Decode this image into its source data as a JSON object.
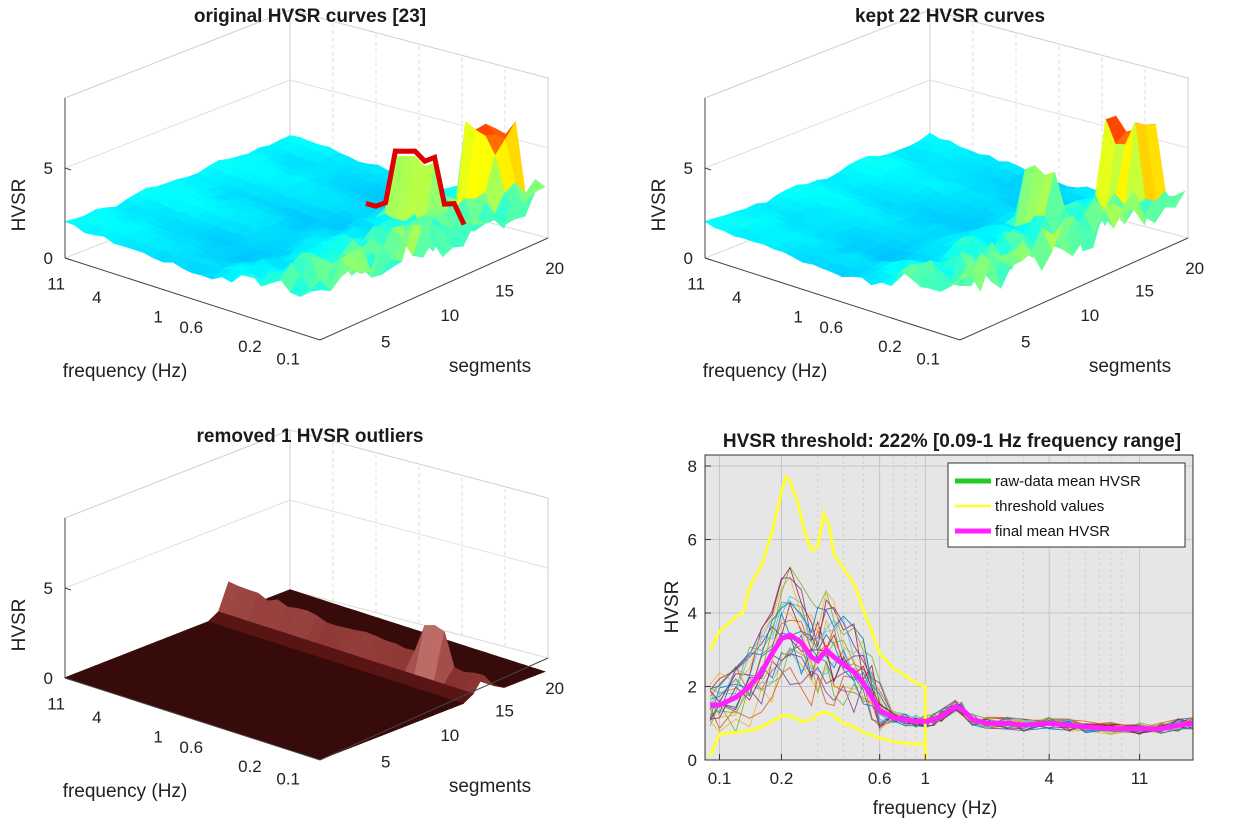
{
  "chart_data": [
    {
      "type": "surface",
      "title": "original HVSR curves [23]",
      "zlabel": "HVSR",
      "xlabel": "frequency (Hz)",
      "ylabel": "segments",
      "z_ticks": [
        "0",
        "5"
      ],
      "freq_ticks": [
        "11",
        "4",
        "1",
        "0.6",
        "0.2",
        "0.1"
      ],
      "segment_ticks": [
        "5",
        "10",
        "15",
        "20"
      ],
      "colormap": "jet",
      "outlier_color": "#e00000"
    },
    {
      "type": "surface",
      "title": "kept 22 HVSR curves",
      "zlabel": "HVSR",
      "xlabel": "frequency (Hz)",
      "ylabel": "segments",
      "z_ticks": [
        "0",
        "5"
      ],
      "freq_ticks": [
        "11",
        "4",
        "1",
        "0.6",
        "0.2",
        "0.1"
      ],
      "segment_ticks": [
        "5",
        "10",
        "15",
        "20"
      ],
      "colormap": "jet"
    },
    {
      "type": "surface",
      "title": "removed 1 HVSR outliers",
      "zlabel": "HVSR",
      "xlabel": "frequency (Hz)",
      "ylabel": "segments",
      "z_ticks": [
        "0",
        "5"
      ],
      "freq_ticks": [
        "11",
        "4",
        "1",
        "0.6",
        "0.2",
        "0.1"
      ],
      "segment_ticks": [
        "5",
        "10",
        "15",
        "20"
      ],
      "colormap": "pink"
    },
    {
      "type": "line",
      "title": "HVSR threshold: 222% [0.09-1 Hz frequency range]",
      "xlabel": "frequency (Hz)",
      "ylabel": "HVSR",
      "x_scale": "log",
      "xlim": [
        0.085,
        20
      ],
      "ylim": [
        0,
        8.3
      ],
      "x_ticks": [
        "0.1",
        "0.2",
        "0.6",
        "1",
        "4",
        "11"
      ],
      "y_ticks": [
        "0",
        "2",
        "4",
        "6",
        "8"
      ],
      "grid": true,
      "background": "#e6e6e6",
      "legend_position": "top-right",
      "legend": [
        "raw-data mean HVSR",
        "threshold values",
        "final mean HVSR"
      ],
      "legend_colors": [
        "#22cc22",
        "#ffff33",
        "#ff22ff"
      ],
      "series": [
        {
          "name": "final mean HVSR",
          "color": "#ff22ff",
          "x": [
            0.09,
            0.1,
            0.12,
            0.14,
            0.16,
            0.18,
            0.2,
            0.22,
            0.25,
            0.28,
            0.3,
            0.33,
            0.36,
            0.4,
            0.45,
            0.5,
            0.55,
            0.6,
            0.7,
            0.8,
            0.9,
            1.0,
            1.1,
            1.2,
            1.4,
            1.5,
            1.7,
            2.0,
            2.5,
            3,
            4,
            5,
            6,
            8,
            11,
            14,
            17,
            20
          ],
          "y": [
            1.5,
            1.5,
            1.7,
            2.0,
            2.4,
            2.9,
            3.3,
            3.4,
            3.2,
            2.8,
            2.7,
            3.0,
            2.8,
            2.6,
            2.4,
            2.1,
            1.7,
            1.35,
            1.15,
            1.1,
            1.05,
            1.05,
            1.1,
            1.2,
            1.45,
            1.4,
            1.1,
            1.0,
            1.0,
            0.95,
            1.0,
            0.95,
            0.9,
            0.85,
            0.85,
            0.85,
            0.95,
            1.0
          ]
        },
        {
          "name": "threshold values",
          "color": "#ffff33",
          "upper_x": [
            0.09,
            0.1,
            0.12,
            0.13,
            0.14,
            0.16,
            0.18,
            0.2,
            0.21,
            0.22,
            0.24,
            0.26,
            0.28,
            0.3,
            0.32,
            0.34,
            0.36,
            0.4,
            0.45,
            0.5,
            0.55,
            0.6,
            0.7,
            0.8,
            0.9,
            1.0
          ],
          "upper_y": [
            3.0,
            3.5,
            3.9,
            4.0,
            4.7,
            5.3,
            6.2,
            7.3,
            7.7,
            7.6,
            7.0,
            6.2,
            5.7,
            5.8,
            6.7,
            6.4,
            5.6,
            5.2,
            4.8,
            4.1,
            3.5,
            2.9,
            2.5,
            2.3,
            2.1,
            2.0
          ],
          "lower_x": [
            0.09,
            0.1,
            0.12,
            0.14,
            0.16,
            0.18,
            0.2,
            0.22,
            0.25,
            0.28,
            0.3,
            0.33,
            0.36,
            0.4,
            0.45,
            0.5,
            0.6,
            0.7,
            0.8,
            0.9,
            1.0
          ],
          "lower_y": [
            0.1,
            0.7,
            0.75,
            0.8,
            0.9,
            1.05,
            1.2,
            1.2,
            1.05,
            1.1,
            1.25,
            1.3,
            1.2,
            1.0,
            0.9,
            0.75,
            0.6,
            0.5,
            0.45,
            0.45,
            0.4
          ]
        }
      ]
    }
  ]
}
